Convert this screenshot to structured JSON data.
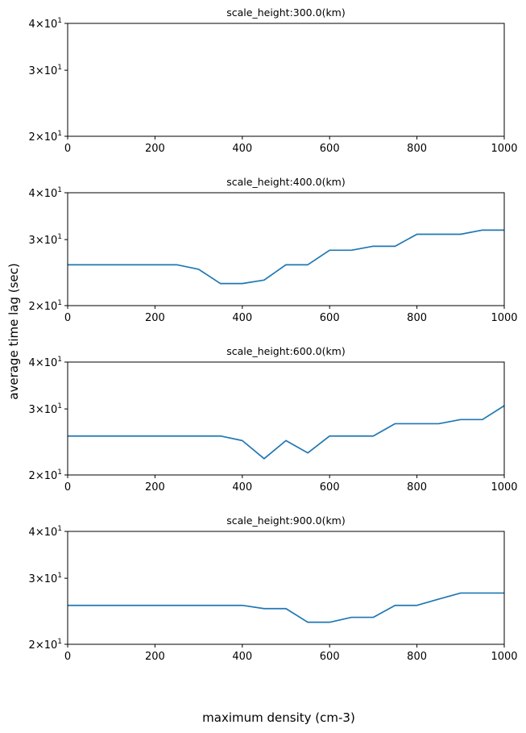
{
  "figure": {
    "ylabel": "average time lag (sec)",
    "xlabel": "maximum density (cm-3)"
  },
  "chart_data": [
    {
      "type": "line",
      "title": "scale_height:300.0(km)",
      "xlim": [
        0,
        1000
      ],
      "ylim": [
        20,
        40
      ],
      "yscale": "log",
      "x_ticks": [
        "0",
        "200",
        "400",
        "600",
        "800",
        "1000"
      ],
      "y_ticks": [
        {
          "value": 20,
          "base": "2",
          "exp": "1"
        },
        {
          "value": 30,
          "base": "3",
          "exp": "1"
        },
        {
          "value": 40,
          "base": "4",
          "exp": "1"
        }
      ],
      "series": [
        {
          "color": "#1f77b4",
          "x": [],
          "y": []
        }
      ]
    },
    {
      "type": "line",
      "title": "scale_height:400.0(km)",
      "xlim": [
        0,
        1000
      ],
      "ylim": [
        20,
        40
      ],
      "yscale": "log",
      "x_ticks": [
        "0",
        "200",
        "400",
        "600",
        "800",
        "1000"
      ],
      "y_ticks": [
        {
          "value": 20,
          "base": "2",
          "exp": "1"
        },
        {
          "value": 30,
          "base": "3",
          "exp": "1"
        },
        {
          "value": 40,
          "base": "4",
          "exp": "1"
        }
      ],
      "series": [
        {
          "color": "#1f77b4",
          "x": [
            0,
            50,
            100,
            150,
            200,
            250,
            300,
            350,
            400,
            450,
            500,
            550,
            600,
            650,
            700,
            750,
            800,
            850,
            900,
            950,
            1000
          ],
          "y": [
            25.7,
            25.7,
            25.7,
            25.7,
            25.7,
            25.7,
            25.0,
            22.9,
            22.9,
            23.4,
            25.7,
            25.7,
            28.1,
            28.1,
            28.8,
            28.8,
            31.0,
            31.0,
            31.0,
            31.8,
            31.8
          ]
        }
      ]
    },
    {
      "type": "line",
      "title": "scale_height:600.0(km)",
      "xlim": [
        0,
        1000
      ],
      "ylim": [
        20,
        40
      ],
      "yscale": "log",
      "x_ticks": [
        "0",
        "200",
        "400",
        "600",
        "800",
        "1000"
      ],
      "y_ticks": [
        {
          "value": 20,
          "base": "2",
          "exp": "1"
        },
        {
          "value": 30,
          "base": "3",
          "exp": "1"
        },
        {
          "value": 40,
          "base": "4",
          "exp": "1"
        }
      ],
      "series": [
        {
          "color": "#1f77b4",
          "x": [
            0,
            50,
            100,
            150,
            200,
            250,
            300,
            350,
            400,
            450,
            500,
            550,
            600,
            650,
            700,
            750,
            800,
            850,
            900,
            950,
            1000
          ],
          "y": [
            25.4,
            25.4,
            25.4,
            25.4,
            25.4,
            25.4,
            25.4,
            25.4,
            24.7,
            22.1,
            24.7,
            22.9,
            25.4,
            25.4,
            25.4,
            27.4,
            27.4,
            27.4,
            28.1,
            28.1,
            30.6
          ]
        }
      ]
    },
    {
      "type": "line",
      "title": "scale_height:900.0(km)",
      "xlim": [
        0,
        1000
      ],
      "ylim": [
        20,
        40
      ],
      "yscale": "log",
      "x_ticks": [
        "0",
        "200",
        "400",
        "600",
        "800",
        "1000"
      ],
      "y_ticks": [
        {
          "value": 20,
          "base": "2",
          "exp": "1"
        },
        {
          "value": 30,
          "base": "3",
          "exp": "1"
        },
        {
          "value": 40,
          "base": "4",
          "exp": "1"
        }
      ],
      "series": [
        {
          "color": "#1f77b4",
          "x": [
            0,
            50,
            100,
            150,
            200,
            250,
            300,
            350,
            400,
            450,
            500,
            550,
            600,
            650,
            700,
            750,
            800,
            850,
            900,
            950,
            1000
          ],
          "y": [
            25.4,
            25.4,
            25.4,
            25.4,
            25.4,
            25.4,
            25.4,
            25.4,
            25.4,
            24.9,
            24.9,
            22.9,
            22.9,
            23.6,
            23.6,
            25.4,
            25.4,
            26.4,
            27.4,
            27.4,
            27.4
          ]
        }
      ]
    }
  ]
}
